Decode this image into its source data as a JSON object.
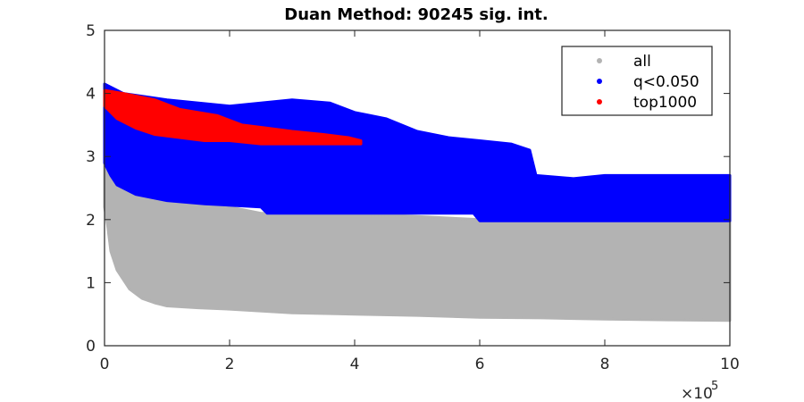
{
  "chart_data": {
    "type": "scatter",
    "title": "Duan Method: 90245 sig. int.",
    "xlabel": "",
    "ylabel": "",
    "x_multiplier_label": "×10",
    "x_multiplier_exponent": "5",
    "xlim": [
      0,
      10
    ],
    "ylim": [
      0,
      5
    ],
    "xticks": [
      {
        "value": 0,
        "label": "0"
      },
      {
        "value": 2,
        "label": "2"
      },
      {
        "value": 4,
        "label": "4"
      },
      {
        "value": 6,
        "label": "6"
      },
      {
        "value": 8,
        "label": "8"
      },
      {
        "value": 10,
        "label": "10"
      }
    ],
    "yticks": [
      {
        "value": 0,
        "label": "0"
      },
      {
        "value": 1,
        "label": "1"
      },
      {
        "value": 2,
        "label": "2"
      },
      {
        "value": 3,
        "label": "3"
      },
      {
        "value": 4,
        "label": "4"
      },
      {
        "value": 5,
        "label": "5"
      }
    ],
    "grid": false,
    "legend_position": "top-right",
    "series": [
      {
        "name": "all",
        "color": "#b3b3b3",
        "upper_envelope": [
          [
            0.0,
            4.1
          ],
          [
            0.1,
            3.6
          ],
          [
            0.3,
            3.0
          ],
          [
            0.6,
            2.5
          ],
          [
            1.0,
            2.3
          ],
          [
            2.0,
            2.2
          ],
          [
            2.5,
            2.1
          ],
          [
            4.0,
            2.1
          ],
          [
            6.0,
            2.0
          ],
          [
            10.0,
            2.0
          ]
        ],
        "lower_envelope": [
          [
            0.0,
            2.2
          ],
          [
            0.05,
            1.9
          ],
          [
            0.1,
            1.5
          ],
          [
            0.2,
            1.2
          ],
          [
            0.4,
            0.9
          ],
          [
            0.6,
            0.75
          ],
          [
            0.8,
            0.68
          ],
          [
            1.0,
            0.63
          ],
          [
            1.5,
            0.6
          ],
          [
            2.0,
            0.58
          ],
          [
            3.0,
            0.52
          ],
          [
            4.0,
            0.5
          ],
          [
            5.0,
            0.48
          ],
          [
            6.0,
            0.45
          ],
          [
            7.0,
            0.44
          ],
          [
            8.0,
            0.42
          ],
          [
            9.0,
            0.41
          ],
          [
            10.0,
            0.4
          ]
        ]
      },
      {
        "name": "q<0.050",
        "color": "#0000ff",
        "upper_envelope": [
          [
            0.0,
            4.15
          ],
          [
            0.3,
            4.0
          ],
          [
            1.0,
            3.9
          ],
          [
            2.0,
            3.8
          ],
          [
            2.5,
            3.85
          ],
          [
            3.0,
            3.9
          ],
          [
            3.6,
            3.85
          ],
          [
            4.0,
            3.7
          ],
          [
            4.5,
            3.6
          ],
          [
            5.0,
            3.4
          ],
          [
            5.5,
            3.3
          ],
          [
            6.0,
            3.25
          ],
          [
            6.5,
            3.2
          ],
          [
            6.8,
            3.1
          ],
          [
            6.9,
            2.7
          ],
          [
            7.5,
            2.65
          ],
          [
            8.0,
            2.7
          ],
          [
            9.0,
            2.7
          ],
          [
            10.0,
            2.7
          ]
        ],
        "lower_envelope": [
          [
            0.0,
            2.9
          ],
          [
            0.1,
            2.7
          ],
          [
            0.2,
            2.55
          ],
          [
            0.5,
            2.4
          ],
          [
            1.0,
            2.3
          ],
          [
            1.6,
            2.25
          ],
          [
            2.5,
            2.2
          ],
          [
            2.6,
            2.1
          ],
          [
            4.0,
            2.1
          ],
          [
            5.9,
            2.1
          ],
          [
            6.0,
            1.98
          ],
          [
            10.0,
            1.98
          ]
        ]
      },
      {
        "name": "top1000",
        "color": "#ff0000",
        "upper_envelope": [
          [
            0.0,
            4.05
          ],
          [
            0.3,
            4.0
          ],
          [
            0.8,
            3.9
          ],
          [
            1.2,
            3.75
          ],
          [
            1.8,
            3.65
          ],
          [
            2.2,
            3.5
          ],
          [
            2.6,
            3.45
          ],
          [
            3.0,
            3.4
          ],
          [
            3.5,
            3.35
          ],
          [
            3.9,
            3.3
          ],
          [
            4.1,
            3.25
          ]
        ],
        "lower_envelope": [
          [
            0.0,
            3.8
          ],
          [
            0.2,
            3.6
          ],
          [
            0.5,
            3.45
          ],
          [
            0.8,
            3.35
          ],
          [
            1.2,
            3.3
          ],
          [
            1.6,
            3.25
          ],
          [
            2.0,
            3.25
          ],
          [
            2.5,
            3.2
          ],
          [
            3.0,
            3.2
          ],
          [
            3.5,
            3.2
          ],
          [
            4.1,
            3.2
          ]
        ]
      }
    ]
  }
}
